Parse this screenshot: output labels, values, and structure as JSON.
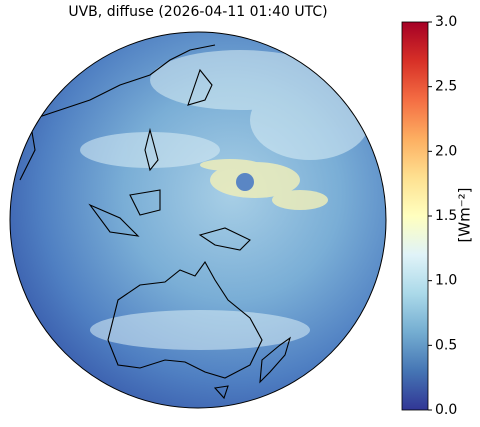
{
  "title": "UVB, diffuse (2026-04-11 01:40 UTC)",
  "colorbar": {
    "label": "[Wm⁻²]",
    "lim": [
      0,
      3
    ],
    "ticks": [
      {
        "value": 0,
        "label": "0.0"
      },
      0.5,
      {
        "value": 1,
        "label": "1.0"
      },
      1.5,
      {
        "value": 2,
        "label": "2.0"
      },
      2.5,
      {
        "value": 3,
        "label": "3.0"
      }
    ],
    "colormap": [
      "#313695",
      "#4575b4",
      "#74add1",
      "#abd9e9",
      "#e0f3f8",
      "#ffffbf",
      "#fee090",
      "#fdae61",
      "#f46d43",
      "#d73027",
      "#a50026"
    ]
  }
}
